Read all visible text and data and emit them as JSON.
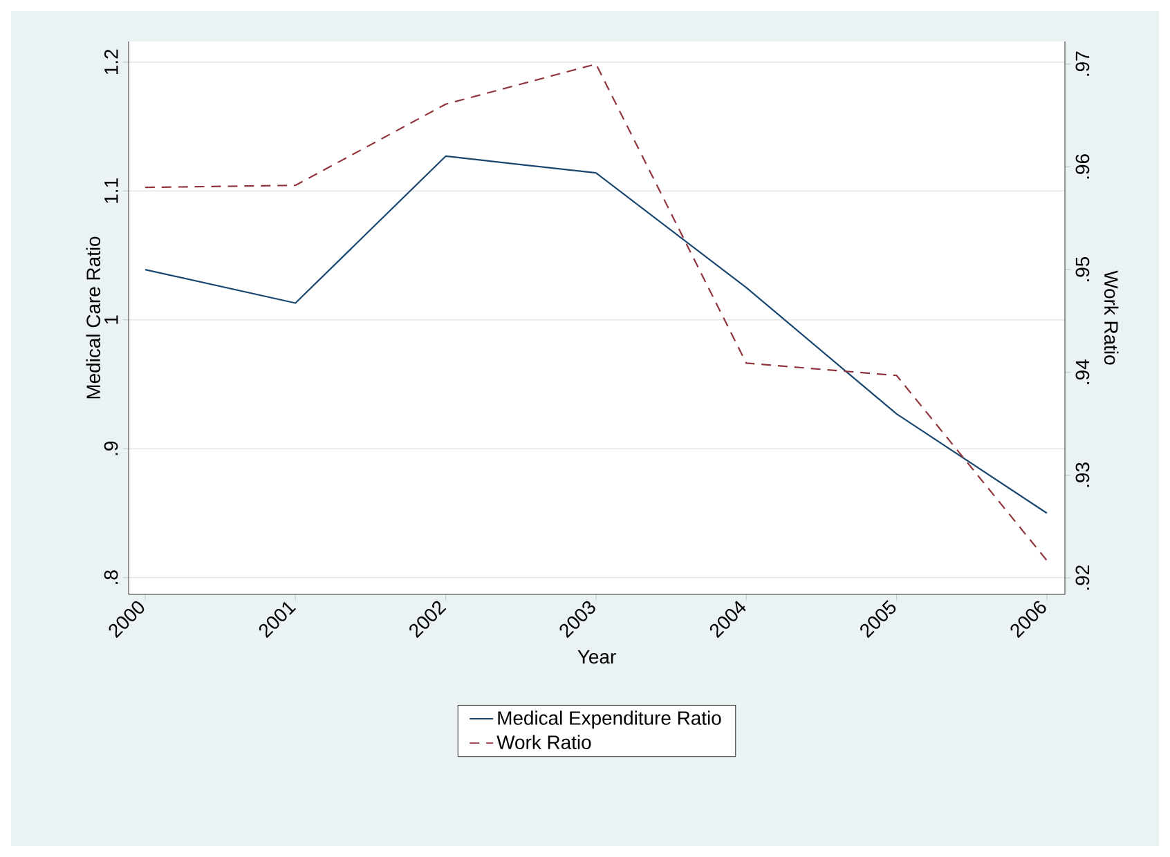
{
  "chart_data": {
    "type": "line",
    "xlabel": "Year",
    "ylabel": "Medical Care Ratio",
    "y2label": "Work Ratio",
    "categories": [
      "2000",
      "2001",
      "2002",
      "2003",
      "2004",
      "2005",
      "2006"
    ],
    "series": [
      {
        "name": "Medical Expenditure Ratio",
        "color": "#1a476f",
        "line_style": "solid",
        "values": [
          1.039,
          1.013,
          1.127,
          1.114,
          1.025,
          0.927,
          0.85
        ]
      },
      {
        "name": "Work Ratio",
        "color": "#90353b",
        "line_style": "dashed",
        "axis": "y2",
        "values": [
          0.958,
          0.9582,
          0.9661,
          0.97,
          0.9409,
          0.9397,
          0.9217
        ]
      }
    ],
    "ylim": [
      0.787,
      1.216
    ],
    "yticks": [
      {
        "value": 0.8,
        "label": ".8"
      },
      {
        "value": 0.9,
        "label": ".9"
      },
      1,
      1.1,
      1.2
    ],
    "y2lim": [
      0.9184,
      0.9722
    ],
    "y2ticks": [
      {
        "value": 0.92,
        "label": ".92"
      },
      {
        "value": 0.93,
        "label": ".93"
      },
      {
        "value": 0.94,
        "label": ".94"
      },
      {
        "value": 0.95,
        "label": ".95"
      },
      {
        "value": 0.96,
        "label": ".96"
      },
      {
        "value": 0.97,
        "label": ".97"
      }
    ],
    "grid": "y",
    "legend": "bottom"
  }
}
